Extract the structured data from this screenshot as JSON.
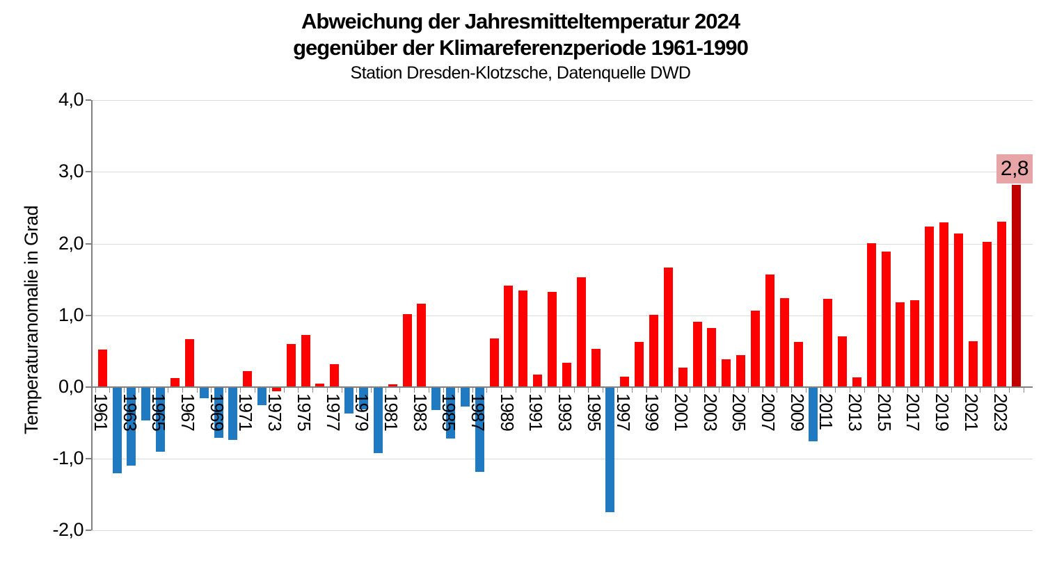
{
  "title": {
    "line1": "Abweichung der Jahresmitteltemperatur 2024",
    "line2": "gegenüber der Klimareferenzperiode 1961-1990",
    "subtitle": "Station Dresden-Klotzsche, Datenquelle DWD"
  },
  "y_axis": {
    "title": "Temperaturanomalie in Grad",
    "ticks": [
      {
        "label": "4,0",
        "value": 4.0
      },
      {
        "label": "3,0",
        "value": 3.0
      },
      {
        "label": "2,0",
        "value": 2.0
      },
      {
        "label": "1,0",
        "value": 1.0
      },
      {
        "label": "0,0",
        "value": 0.0
      },
      {
        "label": "-1,0",
        "value": -1.0
      },
      {
        "label": "-2,0",
        "value": -2.0
      }
    ]
  },
  "x_axis": {
    "labeled_years": [
      "1961",
      "1963",
      "1965",
      "1967",
      "1969",
      "1971",
      "1973",
      "1975",
      "1977",
      "1979",
      "1981",
      "1983",
      "1985",
      "1987",
      "1989",
      "1991",
      "1993",
      "1995",
      "1997",
      "1999",
      "2001",
      "2003",
      "2005",
      "2007",
      "2009",
      "2011",
      "2013",
      "2015",
      "2017",
      "2019",
      "2021",
      "2023"
    ]
  },
  "annotation": {
    "text": "2,8",
    "year": 2024
  },
  "colors": {
    "positive_bar": "#ff0000",
    "negative_bar": "#1f7ac2",
    "highlight_bar": "#c00000",
    "annotation_bg": "#e7a5a8",
    "gridline": "#d9d9d9",
    "axis": "#808080",
    "text": "#000000"
  },
  "chart_data": {
    "type": "bar",
    "title": "Abweichung der Jahresmitteltemperatur 2024 gegenüber der Klimareferenzperiode 1961-1990",
    "subtitle": "Station Dresden-Klotzsche, Datenquelle DWD",
    "xlabel": "",
    "ylabel": "Temperaturanomalie in Grad",
    "ylim": [
      -2.0,
      4.0
    ],
    "grid": true,
    "legend": false,
    "categories": [
      1961,
      1962,
      1963,
      1964,
      1965,
      1966,
      1967,
      1968,
      1969,
      1970,
      1971,
      1972,
      1973,
      1974,
      1975,
      1976,
      1977,
      1978,
      1979,
      1980,
      1981,
      1982,
      1983,
      1984,
      1985,
      1986,
      1987,
      1988,
      1989,
      1990,
      1991,
      1992,
      1993,
      1994,
      1995,
      1996,
      1997,
      1998,
      1999,
      2000,
      2001,
      2002,
      2003,
      2004,
      2005,
      2006,
      2007,
      2008,
      2009,
      2010,
      2011,
      2012,
      2013,
      2014,
      2015,
      2016,
      2017,
      2018,
      2019,
      2020,
      2021,
      2022,
      2023,
      2024
    ],
    "values": [
      0.52,
      -1.19,
      -1.09,
      -0.46,
      -0.89,
      0.13,
      0.67,
      -0.15,
      -0.7,
      -0.73,
      0.22,
      -0.24,
      -0.05,
      0.6,
      0.73,
      0.05,
      0.32,
      -0.36,
      -0.3,
      -0.91,
      0.04,
      1.02,
      1.16,
      -0.31,
      -0.71,
      -0.26,
      -1.17,
      0.68,
      1.41,
      1.35,
      0.17,
      1.33,
      0.34,
      1.53,
      0.53,
      -1.73,
      0.15,
      0.63,
      1.01,
      1.67,
      0.27,
      0.91,
      0.82,
      0.39,
      0.45,
      1.07,
      1.57,
      1.24,
      0.63,
      -0.75,
      1.23,
      0.71,
      0.14,
      2.01,
      1.89,
      1.18,
      1.21,
      2.24,
      2.3,
      2.14,
      0.64,
      2.03,
      2.31,
      2.82
    ],
    "color_rule": "positive red, negative blue",
    "red_negative_exception_years": [
      1973
    ],
    "highlight_year": 2024,
    "data_label": {
      "year": 2024,
      "text": "2,8"
    }
  }
}
